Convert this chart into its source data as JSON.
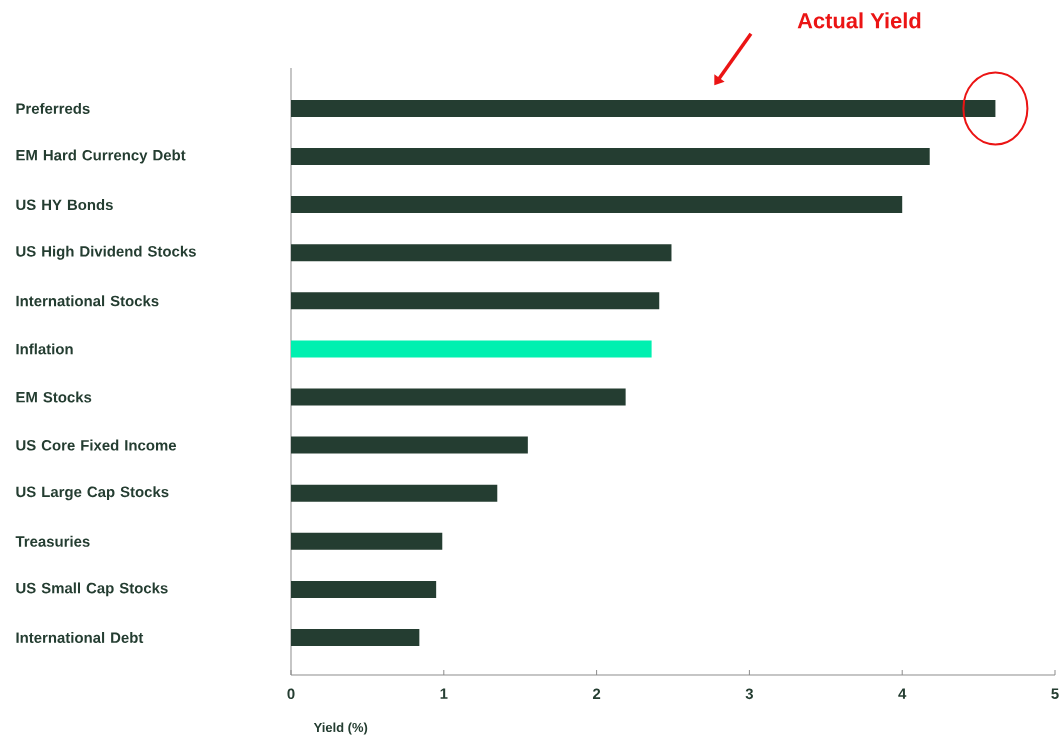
{
  "chart_data": {
    "type": "bar",
    "orientation": "horizontal",
    "xlabel": "Yield (%)",
    "categories": [
      "Preferreds",
      "EM Hard Currency Debt",
      "US HY Bonds",
      "US High Dividend Stocks",
      "International Stocks",
      "Inflation",
      "EM Stocks",
      "US Core Fixed Income",
      "US Large Cap Stocks",
      "Treasuries",
      "US Small Cap Stocks",
      "International  Debt"
    ],
    "values": [
      4.61,
      4.18,
      4.0,
      2.49,
      2.41,
      2.36,
      2.19,
      1.55,
      1.35,
      0.99,
      0.95,
      0.84
    ],
    "colors": [
      "#243d31",
      "#243d31",
      "#243d31",
      "#243d31",
      "#243d31",
      "#00f0b0",
      "#243d31",
      "#243d31",
      "#243d31",
      "#243d31",
      "#243d31",
      "#243d31"
    ],
    "xlim": [
      0,
      5
    ],
    "xticks": [
      0,
      1,
      2,
      3,
      4,
      5
    ],
    "grid": false,
    "annotations": [
      "Actual Yield"
    ]
  }
}
